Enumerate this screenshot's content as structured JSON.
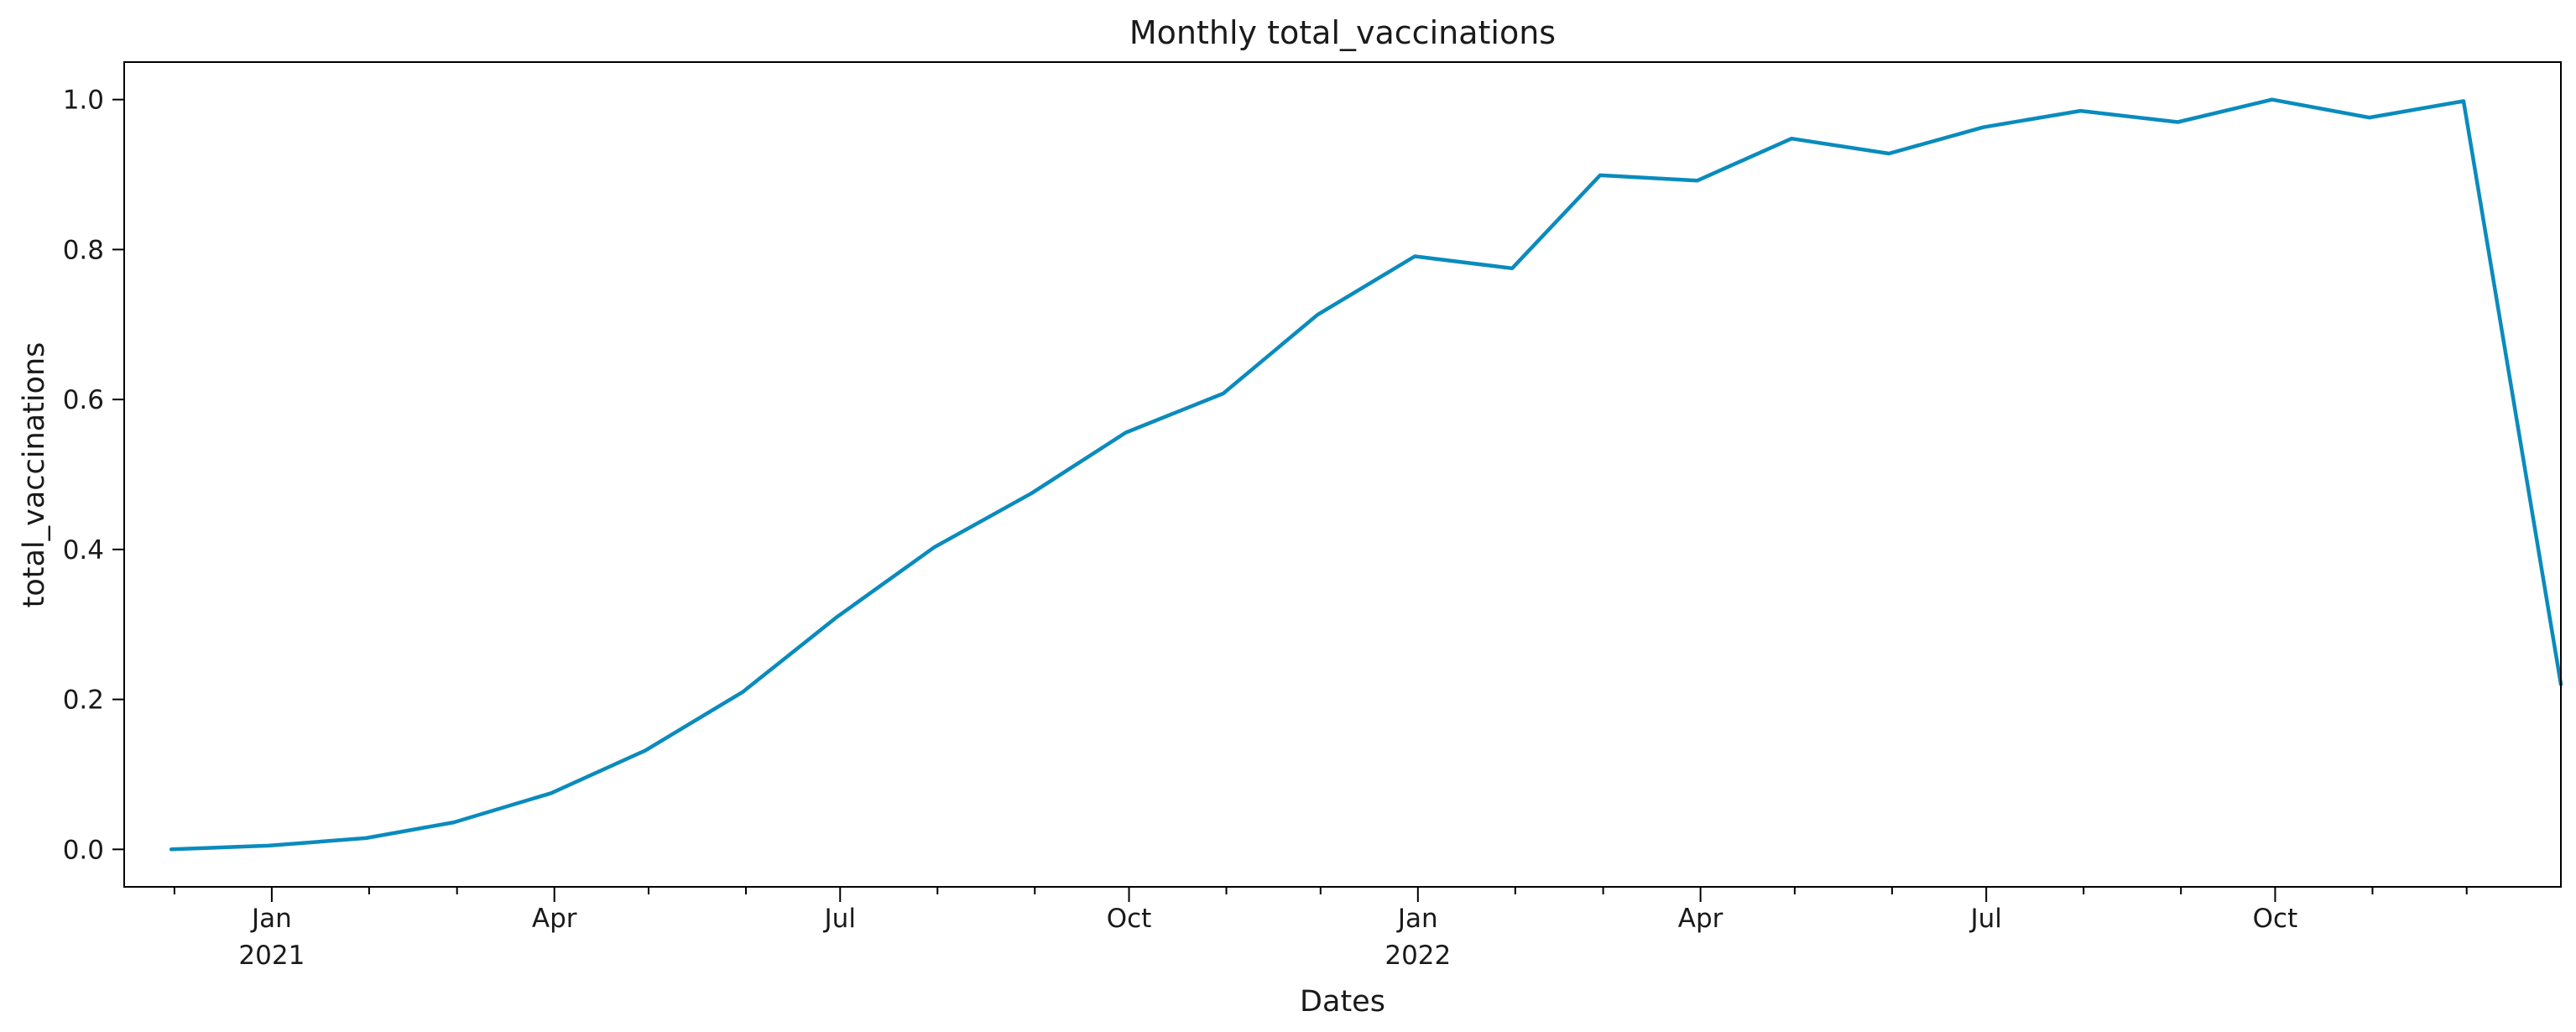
{
  "chart_data": {
    "type": "line",
    "title": "Monthly total_vaccinations",
    "xlabel": "Dates",
    "ylabel": "total_vaccinations",
    "ylim": [
      -0.05,
      1.05
    ],
    "xlim": [
      "2020-11-15",
      "2022-12-31"
    ],
    "grid": false,
    "legend": "none",
    "colors": {
      "line": "#0a8bbd"
    },
    "yticks": [
      {
        "value": 0.0,
        "label": "0.0"
      },
      {
        "value": 0.2,
        "label": "0.2"
      },
      {
        "value": 0.4,
        "label": "0.4"
      },
      {
        "value": 0.6,
        "label": "0.6"
      },
      {
        "value": 0.8,
        "label": "0.8"
      },
      {
        "value": 1.0,
        "label": "1.0"
      }
    ],
    "xticks_major": [
      {
        "date": "2021-01-01",
        "label": "Jan",
        "year": "2021"
      },
      {
        "date": "2021-04-01",
        "label": "Apr",
        "year": ""
      },
      {
        "date": "2021-07-01",
        "label": "Jul",
        "year": ""
      },
      {
        "date": "2021-10-01",
        "label": "Oct",
        "year": ""
      },
      {
        "date": "2022-01-01",
        "label": "Jan",
        "year": "2022"
      },
      {
        "date": "2022-04-01",
        "label": "Apr",
        "year": ""
      },
      {
        "date": "2022-07-01",
        "label": "Jul",
        "year": ""
      },
      {
        "date": "2022-10-01",
        "label": "Oct",
        "year": ""
      }
    ],
    "xticks_minor": [
      "2020-12-01",
      "2021-02-01",
      "2021-03-01",
      "2021-05-01",
      "2021-06-01",
      "2021-08-01",
      "2021-09-01",
      "2021-11-01",
      "2021-12-01",
      "2022-02-01",
      "2022-03-01",
      "2022-05-01",
      "2022-06-01",
      "2022-08-01",
      "2022-09-01",
      "2022-11-01",
      "2022-12-01"
    ],
    "series": [
      {
        "x": [
          "2020-11-30",
          "2020-12-31",
          "2021-01-31",
          "2021-02-28",
          "2021-03-31",
          "2021-04-30",
          "2021-05-31",
          "2021-06-30",
          "2021-07-31",
          "2021-08-31",
          "2021-09-30",
          "2021-10-31",
          "2021-11-30",
          "2021-12-31",
          "2022-01-31",
          "2022-02-28",
          "2022-03-31",
          "2022-04-30",
          "2022-05-31",
          "2022-06-30",
          "2022-07-31",
          "2022-08-31",
          "2022-09-30",
          "2022-10-31",
          "2022-11-30",
          "2022-12-31"
        ],
        "values": [
          0.0,
          0.005,
          0.015,
          0.036,
          0.075,
          0.132,
          0.21,
          0.31,
          0.403,
          0.475,
          0.556,
          0.608,
          0.713,
          0.791,
          0.775,
          0.899,
          0.892,
          0.948,
          0.928,
          0.963,
          0.985,
          0.97,
          1.0,
          0.976,
          0.998,
          0.22
        ]
      }
    ]
  }
}
